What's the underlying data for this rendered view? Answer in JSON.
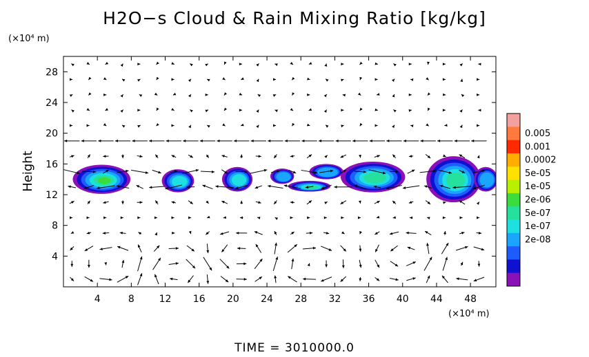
{
  "title": "H2O−s Cloud & Rain Mixing Ratio [kg/kg]",
  "time_label": "TIME  =  3010000.0",
  "chart_data": {
    "type": "heatmap",
    "title": "H2O−s Cloud & Rain Mixing Ratio [kg/kg]",
    "xlabel": "",
    "ylabel": "Height",
    "x_unit": "(×10⁴ m)",
    "y_unit": "(×10⁴ m)",
    "xlim": [
      0,
      51
    ],
    "ylim": [
      0,
      30
    ],
    "x_ticks": [
      4,
      8,
      12,
      16,
      20,
      24,
      28,
      32,
      36,
      40,
      44,
      48
    ],
    "y_ticks": [
      4,
      8,
      12,
      16,
      20,
      24,
      28
    ],
    "grid": false,
    "colorbar": {
      "position": "right",
      "levels": [
        "0.005",
        "0.001",
        "0.0002",
        "5e-05",
        "1e-05",
        "2e-06",
        "5e-07",
        "1e-07",
        "2e-08"
      ],
      "colors": [
        "#f2a0a0",
        "#ff7a3c",
        "#ff2a00",
        "#ffae00",
        "#ffe000",
        "#b8f000",
        "#3cdc3c",
        "#26e09e",
        "#1ee0e0",
        "#1aa6ff",
        "#1e5cff",
        "#1010d0",
        "#8a10b8"
      ]
    },
    "cloud_regions": [
      {
        "x": 4.5,
        "y": 14.0,
        "rx": 3.4,
        "ry": 1.9,
        "level": 7
      },
      {
        "x": 13.5,
        "y": 13.8,
        "rx": 1.9,
        "ry": 1.5,
        "level": 5
      },
      {
        "x": 20.5,
        "y": 14.0,
        "rx": 1.8,
        "ry": 1.6,
        "level": 5
      },
      {
        "x": 25.8,
        "y": 14.4,
        "rx": 1.4,
        "ry": 1.0,
        "level": 4
      },
      {
        "x": 29.0,
        "y": 13.1,
        "rx": 2.5,
        "ry": 0.7,
        "level": 6
      },
      {
        "x": 31.0,
        "y": 15.0,
        "rx": 2.0,
        "ry": 1.0,
        "level": 4
      },
      {
        "x": 36.5,
        "y": 14.3,
        "rx": 3.8,
        "ry": 2.0,
        "level": 6
      },
      {
        "x": 46.0,
        "y": 14.0,
        "rx": 3.2,
        "ry": 3.0,
        "level": 6
      },
      {
        "x": 49.8,
        "y": 14.0,
        "rx": 1.4,
        "ry": 1.6,
        "level": 4
      }
    ],
    "wind_field": {
      "description": "velocity vector arrows",
      "upper_jet_rows": [
        19,
        15,
        13
      ],
      "cells": [
        {
          "x": 6,
          "y": 3,
          "rot": 1
        },
        {
          "x": 13,
          "y": 2,
          "rot": -1
        },
        {
          "x": 21,
          "y": 4,
          "rot": 1
        },
        {
          "x": 29,
          "y": 3,
          "rot": -1
        },
        {
          "x": 41,
          "y": 4,
          "rot": 1
        },
        {
          "x": 47,
          "y": 3,
          "rot": -1
        }
      ]
    }
  }
}
